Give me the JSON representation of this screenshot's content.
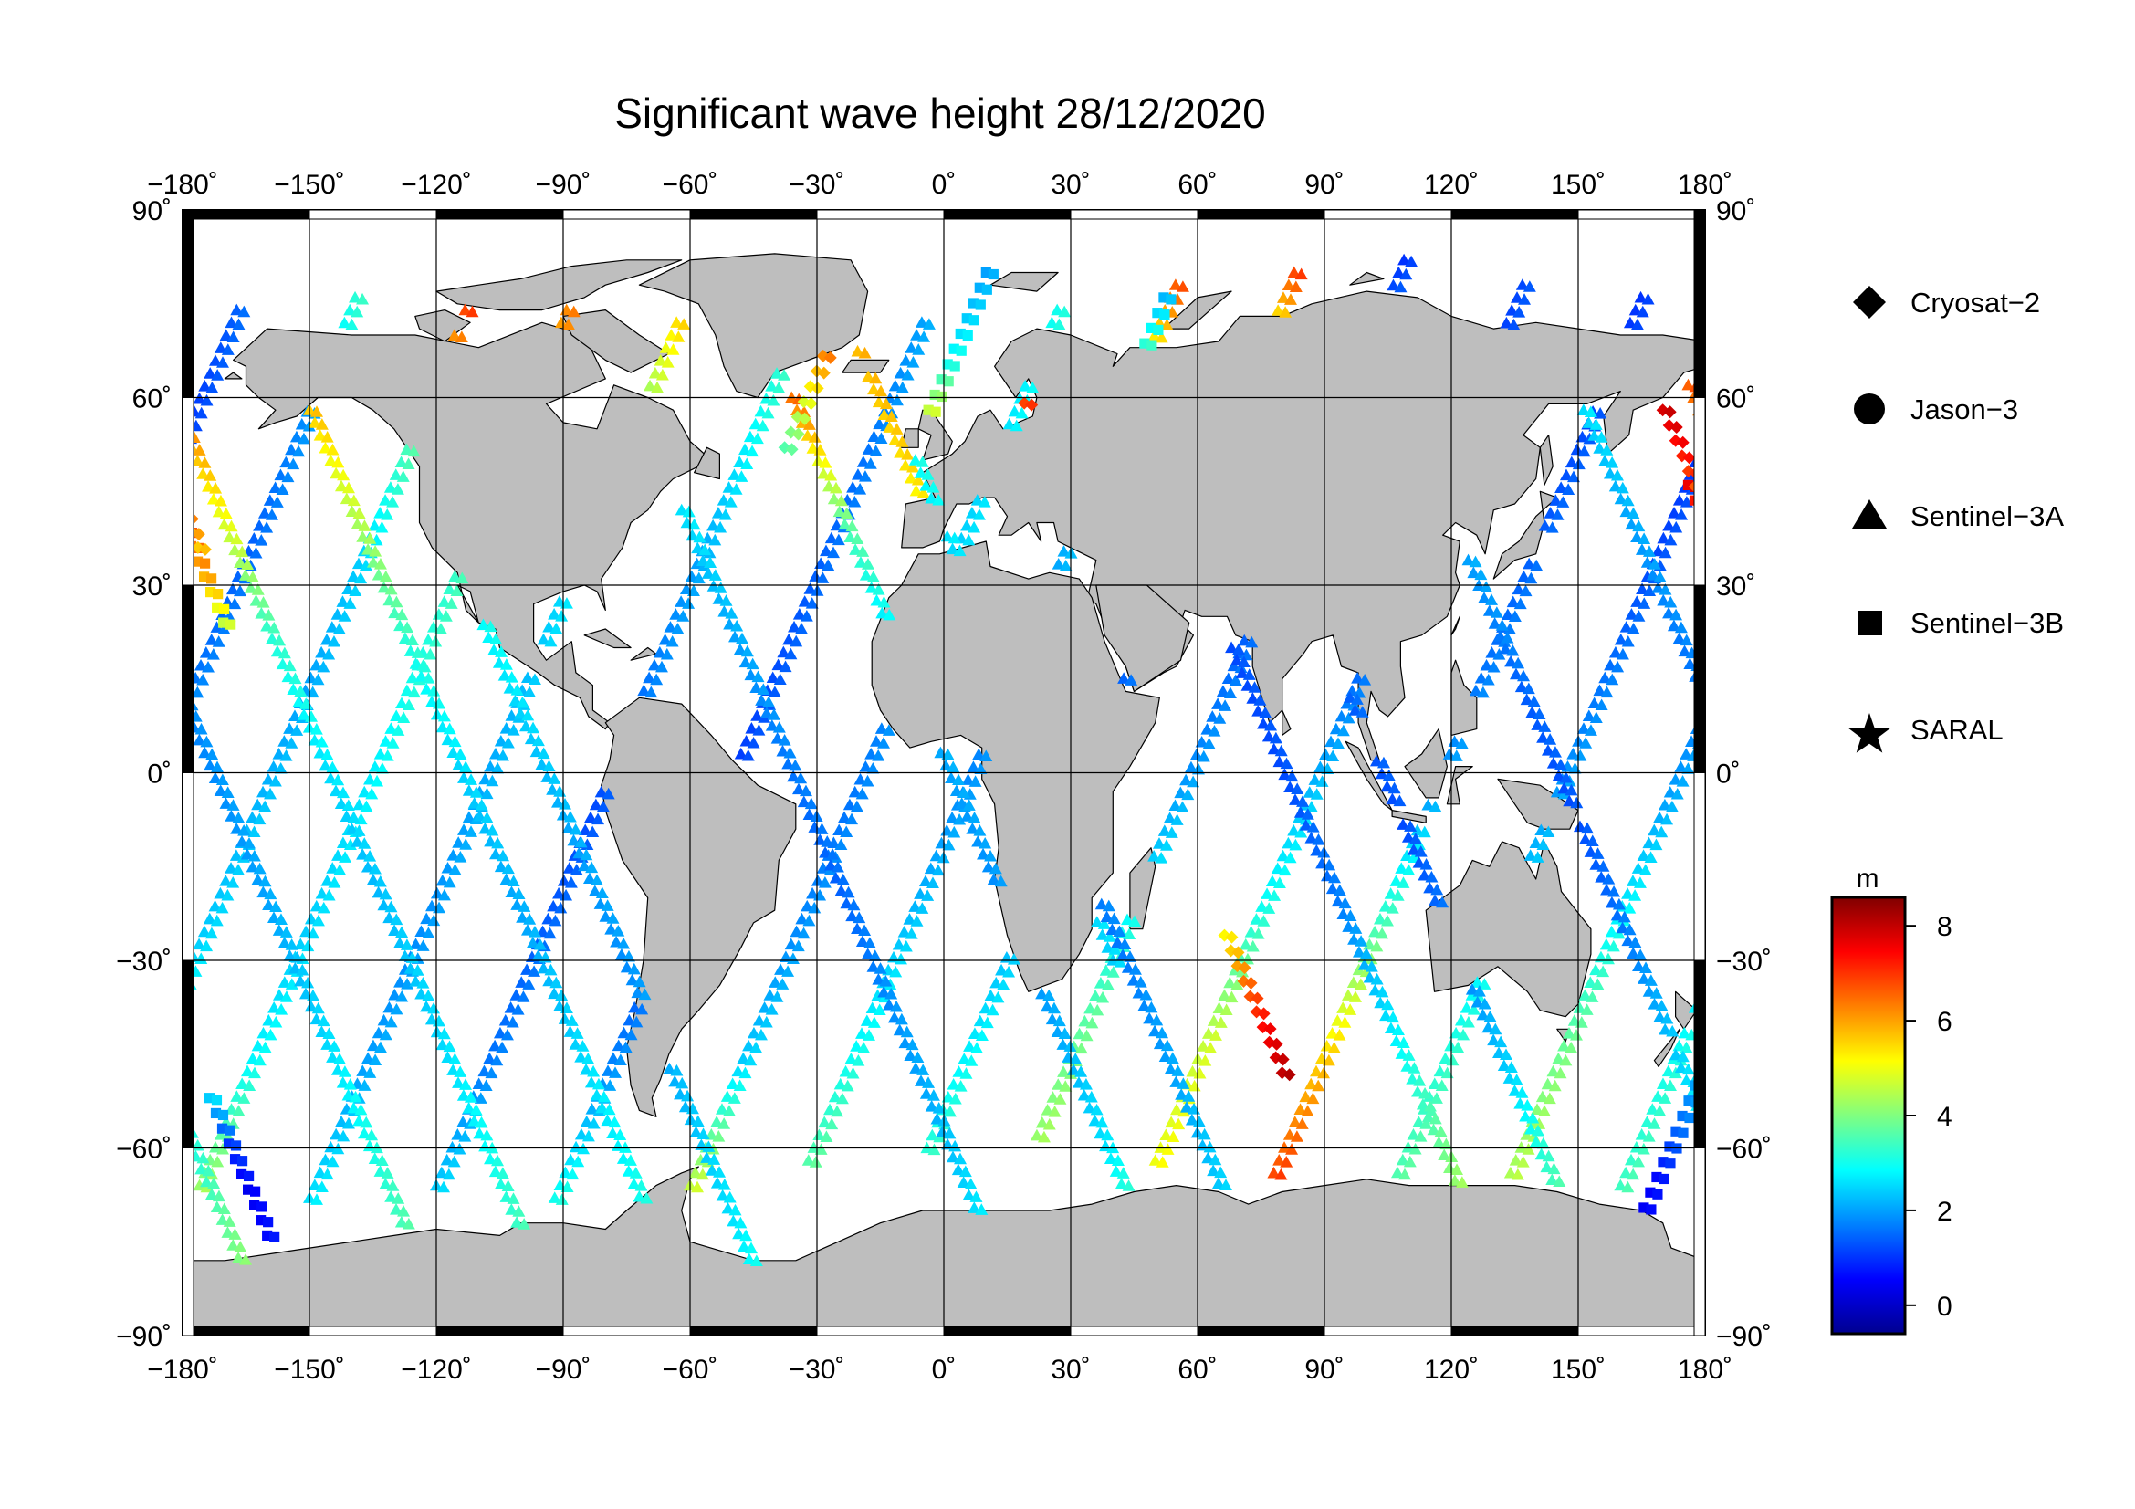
{
  "title": "Significant wave height 28/12/2020",
  "map": {
    "projection": "equirectangular",
    "lon_range": [
      -180,
      180
    ],
    "lat_range": [
      -90,
      90
    ],
    "grid_step_deg": 30,
    "land_color": "#bebebe",
    "ocean_color": "#ffffff",
    "lon_tick_labels": [
      "−180˚",
      "−150˚",
      "−120˚",
      "−90˚",
      "−60˚",
      "−30˚",
      "0˚",
      "30˚",
      "60˚",
      "90˚",
      "120˚",
      "150˚",
      "180˚"
    ],
    "lat_tick_labels": [
      "90˚",
      "60˚",
      "30˚",
      "0˚",
      "−30˚",
      "−60˚",
      "−90˚"
    ]
  },
  "legend": {
    "items": [
      {
        "label": "Cryosat−2",
        "symbol": "diamond"
      },
      {
        "label": "Jason−3",
        "symbol": "circle"
      },
      {
        "label": "Sentinel−3A",
        "symbol": "triangle"
      },
      {
        "label": "Sentinel−3B",
        "symbol": "square"
      },
      {
        "label": "SARAL",
        "symbol": "star"
      }
    ]
  },
  "colorbar": {
    "unit": "m",
    "min": -0.6,
    "max": 8.6,
    "ticks": [
      {
        "value": 8,
        "label": "8"
      },
      {
        "value": 6,
        "label": "6"
      },
      {
        "value": 4,
        "label": "4"
      },
      {
        "value": 2,
        "label": "2"
      },
      {
        "value": 0,
        "label": "0"
      }
    ],
    "colormap": [
      "#00008f",
      "#0000ff",
      "#0080ff",
      "#00ffff",
      "#80ff80",
      "#ffff00",
      "#ff8000",
      "#ff0000",
      "#800000"
    ]
  },
  "chart_data": {
    "type": "scatter",
    "title": "Significant wave height 28/12/2020",
    "x_field": "longitude",
    "y_field": "latitude",
    "color_field": "significant wave height (m)",
    "xlim": [
      -180,
      180
    ],
    "ylim": [
      -90,
      90
    ],
    "grid": true,
    "legend_position": "right",
    "series": [
      {
        "name": "Sentinel−3A",
        "symbol": "triangle",
        "tracks": [
          {
            "lon0": -176,
            "lat0": -66,
            "dir": 1,
            "swh": [
              4.2,
              2.8,
              2.4,
              2.6,
              3.0,
              3.4,
              4.6,
              6.2
            ]
          },
          {
            "lon0": -150,
            "lat0": -68,
            "dir": 1,
            "swh": [
              2.6,
              2.0,
              1.8,
              2.0,
              2.2,
              2.6,
              3.4,
              5.4
            ]
          },
          {
            "lon0": -120,
            "lat0": -66,
            "dir": 1,
            "swh": [
              2.4,
              1.6,
              1.4,
              1.2,
              1.6,
              2.0,
              2.8,
              3.6
            ]
          },
          {
            "lon0": -92,
            "lat0": -68,
            "dir": 1,
            "swh": [
              3.0,
              1.8,
              1.2,
              1.0,
              1.2,
              1.4,
              1.6,
              2.0
            ]
          },
          {
            "lon0": -60,
            "lat0": -66,
            "dir": 1,
            "swh": [
              4.6,
              2.4,
              1.8,
              1.6,
              1.8,
              2.4,
              2.6,
              3.0
            ]
          },
          {
            "lon0": -32,
            "lat0": -62,
            "dir": 1,
            "swh": [
              3.6,
              2.8,
              2.2,
              1.8,
              1.6,
              2.2,
              3.4,
              6.6
            ]
          },
          {
            "lon0": -4,
            "lat0": -60,
            "dir": 1,
            "swh": [
              3.2,
              2.6,
              2.0,
              1.6,
              1.4,
              1.8,
              2.6,
              6.8
            ]
          },
          {
            "lon0": 22,
            "lat0": -58,
            "dir": 1,
            "swh": [
              4.2,
              3.6,
              2.6,
              1.8,
              1.4,
              1.6,
              2.0,
              1.0
            ]
          },
          {
            "lon0": 50,
            "lat0": -62,
            "dir": 1,
            "swh": [
              5.0,
              4.6,
              3.0,
              2.2,
              1.4,
              1.2,
              1.0,
              1.2
            ]
          },
          {
            "lon0": 78,
            "lat0": -64,
            "dir": 1,
            "swh": [
              6.8,
              5.4,
              3.4,
              2.0,
              1.6,
              1.4,
              1.2,
              1.0
            ]
          },
          {
            "lon0": 106,
            "lat0": -66,
            "dir": 1,
            "swh": [
              3.6,
              3.2,
              2.6,
              2.0,
              1.6,
              1.2,
              1.0,
              1.4
            ]
          },
          {
            "lon0": 134,
            "lat0": -64,
            "dir": 1,
            "swh": [
              4.4,
              3.8,
              2.8,
              2.0,
              1.6,
              1.4,
              1.8,
              3.2
            ]
          },
          {
            "lon0": 160,
            "lat0": -66,
            "dir": 1,
            "swh": [
              3.4,
              3.0,
              2.4,
              2.2,
              2.0,
              2.4,
              3.6,
              6.8
            ]
          },
          {
            "lon0": 176,
            "lat0": 62,
            "dir": -1,
            "swh": [
              6.6,
              5.0,
              3.2,
              2.6,
              2.2,
              2.4,
              2.8,
              3.6
            ]
          },
          {
            "lon0": 150,
            "lat0": 60,
            "dir": -1,
            "swh": [
              2.6,
              2.0,
              1.6,
              1.8,
              2.0,
              2.4,
              3.0,
              3.8
            ]
          },
          {
            "lon0": 124,
            "lat0": 34,
            "dir": -1,
            "swh": [
              2.0,
              1.4,
              1.2,
              1.6,
              2.4,
              3.4,
              4.4,
              5.6
            ]
          },
          {
            "lon0": 96,
            "lat0": 12,
            "dir": -1,
            "swh": [
              1.4,
              1.2,
              1.6,
              2.4,
              3.6,
              4.8,
              5.6,
              6.4
            ]
          },
          {
            "lon0": 68,
            "lat0": 20,
            "dir": -1,
            "swh": [
              1.2,
              1.2,
              1.6,
              2.6,
              3.8,
              5.2,
              6.8,
              7.4
            ]
          },
          {
            "lon0": 40,
            "lat0": -30,
            "dir": -1,
            "swh": [
              2.4,
              2.8,
              3.4,
              4.6,
              5.4,
              5.8,
              6.2,
              6.0
            ]
          },
          {
            "lon0": -8,
            "lat0": 52,
            "dir": -1,
            "swh": [
              3.0,
              2.4,
              2.0,
              1.8,
              1.6,
              2.0,
              2.4,
              3.0
            ]
          },
          {
            "lon0": -36,
            "lat0": 60,
            "dir": -1,
            "swh": [
              6.4,
              3.6,
              2.4,
              2.0,
              1.8,
              2.0,
              2.6,
              4.2
            ]
          },
          {
            "lon0": -62,
            "lat0": 42,
            "dir": -1,
            "swh": [
              2.6,
              2.0,
              1.6,
              1.4,
              1.8,
              2.2,
              2.8,
              3.4
            ]
          },
          {
            "lon0": -124,
            "lat0": 48,
            "dir": -1,
            "swh": [
              4.2,
              3.0,
              2.4,
              2.0,
              1.8,
              2.2,
              2.6,
              3.4
            ]
          },
          {
            "lon0": -150,
            "lat0": 58,
            "dir": -1,
            "swh": [
              5.6,
              4.2,
              3.0,
              2.4,
              2.0,
              2.4,
              2.8,
              3.4
            ]
          }
        ]
      },
      {
        "name": "Sentinel−3B",
        "symbol": "square",
        "tracks": [
          {
            "lon0": 10,
            "lat0": 80,
            "dir": 1,
            "swh": [
              2.0,
              2.4,
              3.0,
              4.6
            ]
          },
          {
            "lon0": 52,
            "lat0": 76,
            "dir": 1,
            "swh": [
              2.2,
              3.2,
              5.0,
              6.4
            ]
          },
          {
            "lon0": 176,
            "lat0": 46,
            "dir": -1,
            "swh": [
              7.6,
              6.6,
              5.8,
              4.6
            ]
          },
          {
            "lon0": -160,
            "lat0": -74,
            "dir": -1,
            "swh": [
              0.6,
              0.4,
              1.0,
              2.4
            ]
          },
          {
            "lon0": 164,
            "lat0": -72,
            "dir": 1,
            "swh": [
              0.4,
              0.6,
              1.4,
              2.0
            ]
          }
        ]
      },
      {
        "name": "Cryosat−2",
        "symbol": "diamond",
        "tracks": [
          {
            "lon0": -24,
            "lat0": 74,
            "dir": 1,
            "swh": [
              6.8,
              6.2,
              4.8,
              3.6
            ]
          },
          {
            "lon0": 16,
            "lat0": 64,
            "dir": -1,
            "swh": [
              7.4,
              6.6,
              4.2,
              3.0
            ]
          },
          {
            "lon0": 170,
            "lat0": 58,
            "dir": -1,
            "swh": [
              7.8,
              7.2,
              6.4,
              5.6
            ]
          },
          {
            "lon0": 80,
            "lat0": -48,
            "dir": -1,
            "swh": [
              8.0,
              7.4,
              6.4,
              5.2
            ]
          }
        ]
      },
      {
        "name": "Jason−3",
        "symbol": "circle",
        "tracks": []
      },
      {
        "name": "SARAL",
        "symbol": "star",
        "tracks": []
      }
    ]
  }
}
